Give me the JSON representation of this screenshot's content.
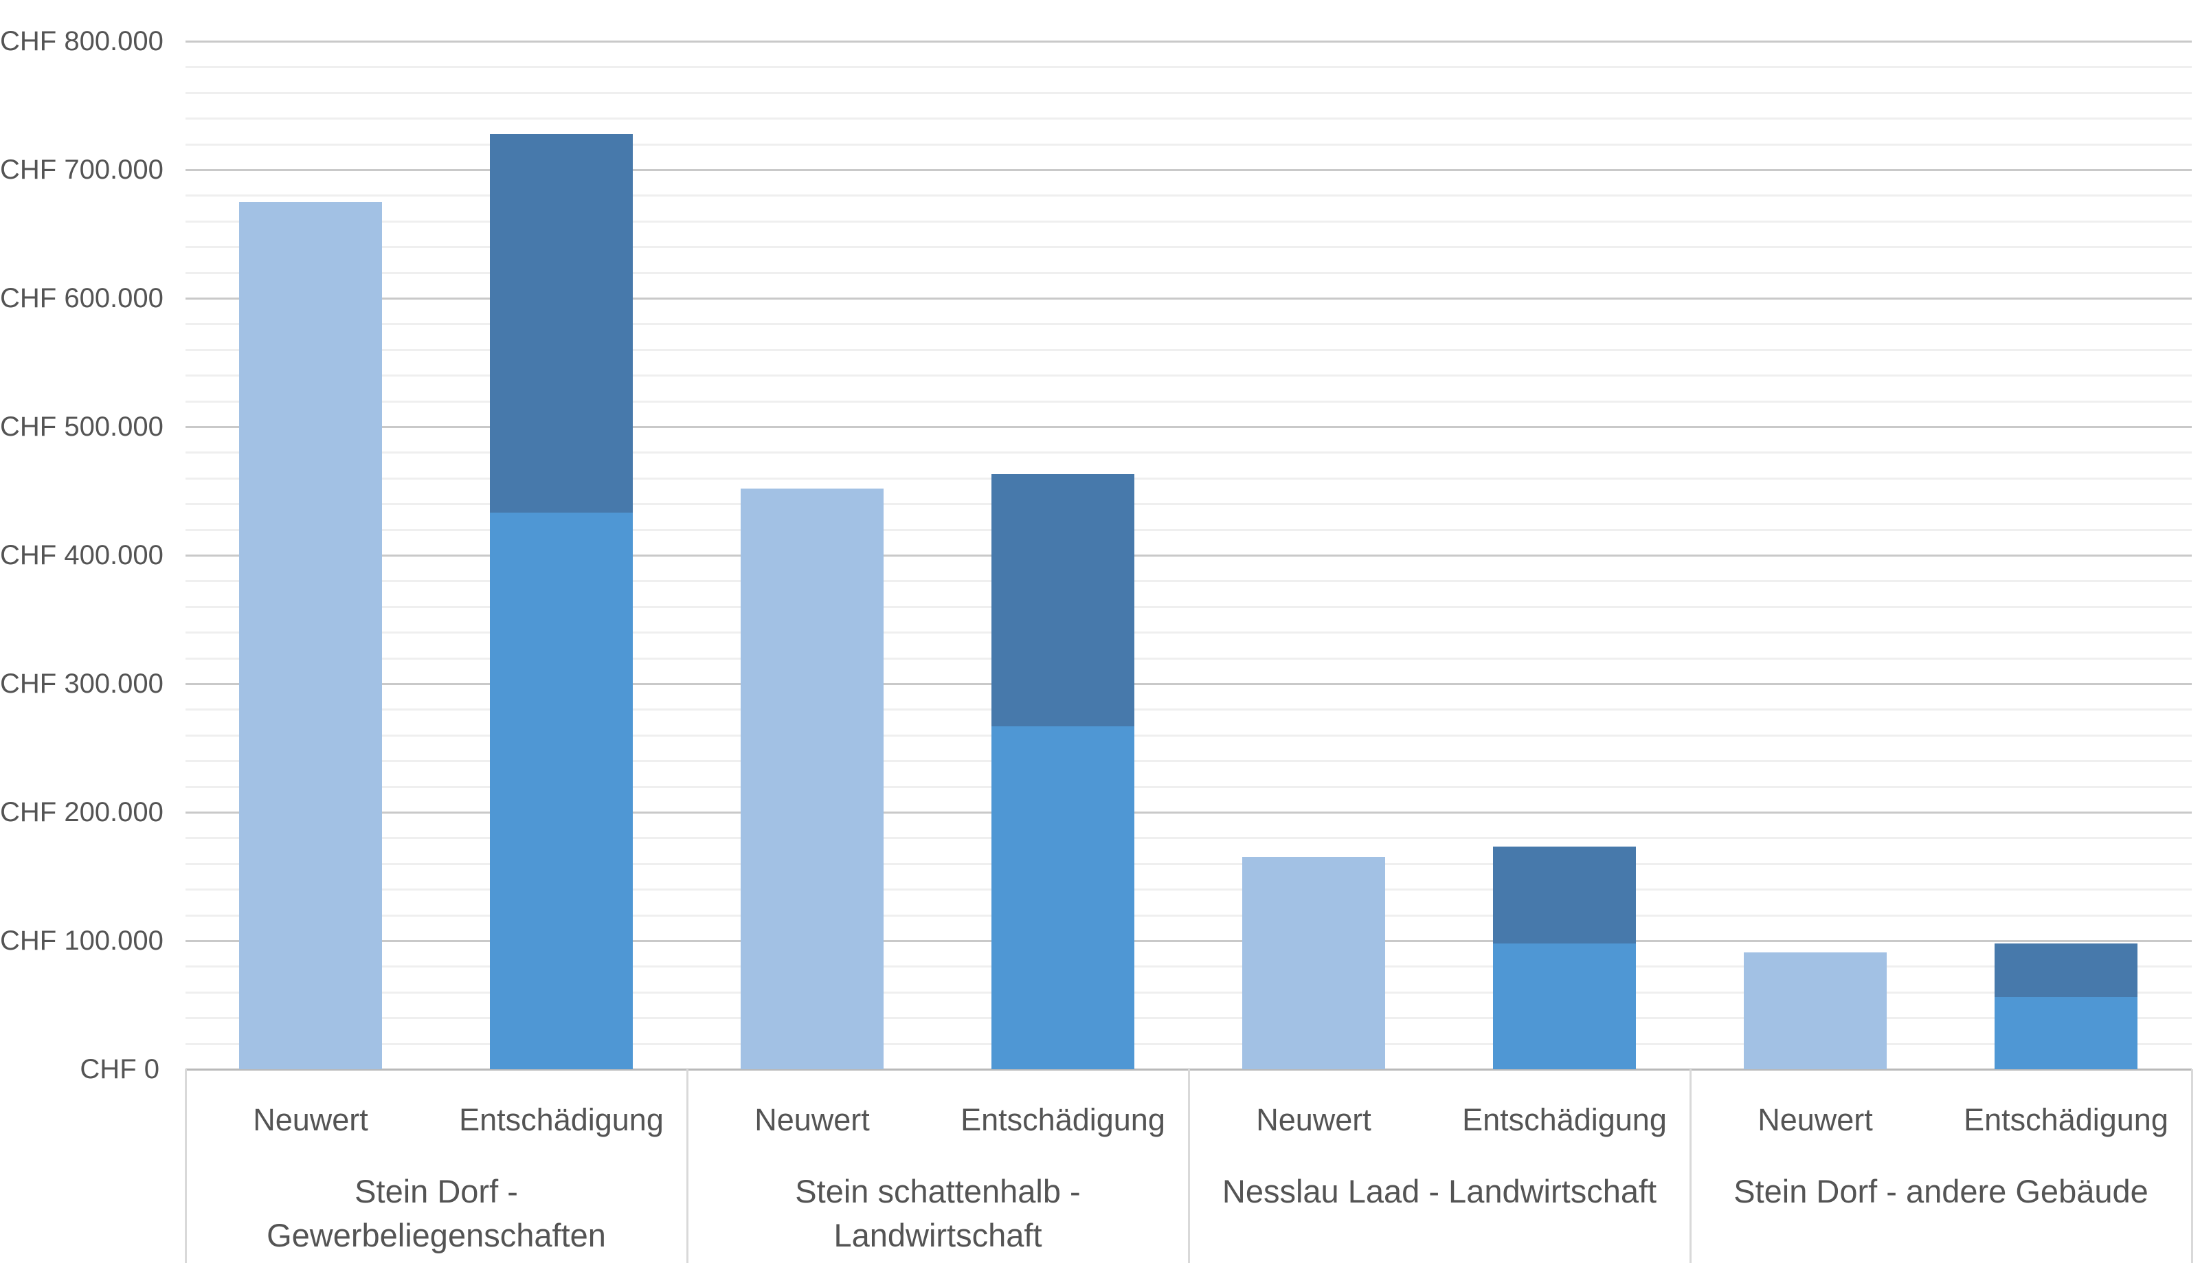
{
  "chart_data": {
    "type": "bar",
    "stacked": true,
    "title": "",
    "legend_position": "none",
    "grid": true,
    "currency": "CHF",
    "y_axis": {
      "min": 0,
      "max": 800000,
      "major_step": 100000,
      "minor_step": 20000,
      "tick_labels": [
        "CHF 0",
        "CHF 100.000",
        "CHF 200.000",
        "CHF 300.000",
        "CHF 400.000",
        "CHF 500.000",
        "CHF 600.000",
        "CHF 700.000",
        "CHF 800.000"
      ]
    },
    "bar_labels": {
      "neuwert": "Neuwert",
      "entschaedigung": "Entschädigung"
    },
    "groups": [
      {
        "label": "Stein Dorf - Gewerbeliegenschaften",
        "neuwert": 675000,
        "entschaedigung_lower": 433000,
        "entschaedigung_upper": 295000,
        "entschaedigung_total": 728000
      },
      {
        "label": "Stein schattenhalb - Landwirtschaft",
        "neuwert": 452000,
        "entschaedigung_lower": 267000,
        "entschaedigung_upper": 196000,
        "entschaedigung_total": 463000
      },
      {
        "label": "Nesslau Laad - Landwirtschaft",
        "neuwert": 165000,
        "entschaedigung_lower": 98000,
        "entschaedigung_upper": 75000,
        "entschaedigung_total": 173000
      },
      {
        "label": "Stein Dorf - andere Gebäude",
        "neuwert": 91000,
        "entschaedigung_lower": 56000,
        "entschaedigung_upper": 42000,
        "entschaedigung_total": 98000
      }
    ],
    "colors": {
      "neuwert_bar": "#a2c1e4",
      "entschaedigung_lower_bar": "#4f97d4",
      "entschaedigung_upper_bar": "#4779ab",
      "gridline_minor": "#efefef",
      "gridline_major": "#c9c9c9",
      "axis_line": "#b9b9b9",
      "band_border": "#d9d9d9",
      "text": "#545454"
    }
  }
}
